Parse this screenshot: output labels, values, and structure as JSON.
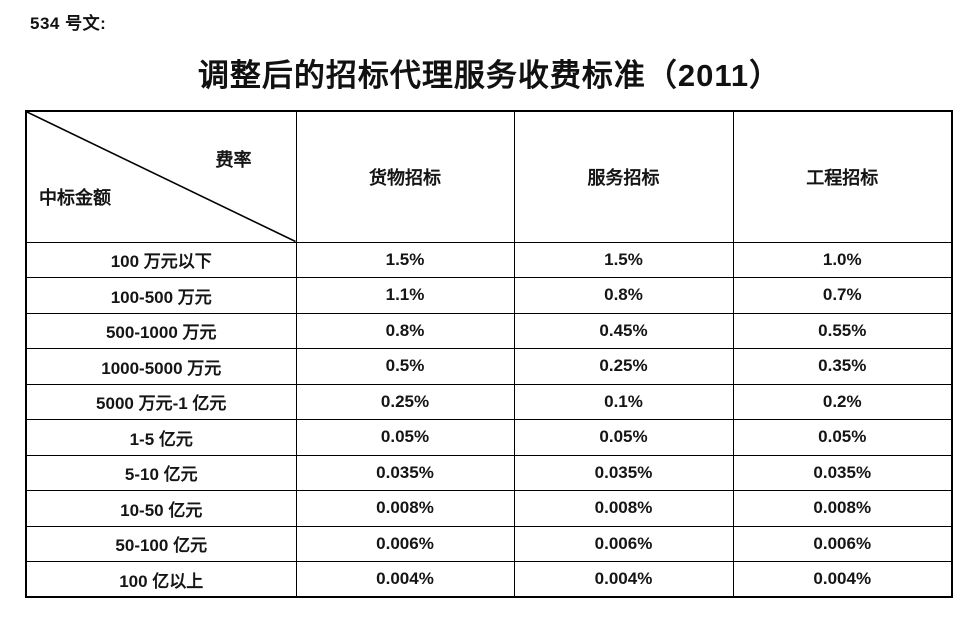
{
  "doc_label": "534 号文:",
  "title": "调整后的招标代理服务收费标准（2011）",
  "table": {
    "corner": {
      "top_right": "费率",
      "bottom_left": "中标金额"
    },
    "columns": [
      "货物招标",
      "服务招标",
      "工程招标"
    ],
    "rows": [
      {
        "label": "100 万元以下",
        "values": [
          "1.5%",
          "1.5%",
          "1.0%"
        ]
      },
      {
        "label": "100-500 万元",
        "values": [
          "1.1%",
          "0.8%",
          "0.7%"
        ]
      },
      {
        "label": "500-1000 万元",
        "values": [
          "0.8%",
          "0.45%",
          "0.55%"
        ]
      },
      {
        "label": "1000-5000 万元",
        "values": [
          "0.5%",
          "0.25%",
          "0.35%"
        ]
      },
      {
        "label": "5000 万元-1 亿元",
        "values": [
          "0.25%",
          "0.1%",
          "0.2%"
        ]
      },
      {
        "label": "1-5 亿元",
        "values": [
          "0.05%",
          "0.05%",
          "0.05%"
        ]
      },
      {
        "label": "5-10 亿元",
        "values": [
          "0.035%",
          "0.035%",
          "0.035%"
        ]
      },
      {
        "label": "10-50 亿元",
        "values": [
          "0.008%",
          "0.008%",
          "0.008%"
        ]
      },
      {
        "label": "50-100 亿元",
        "values": [
          "0.006%",
          "0.006%",
          "0.006%"
        ]
      },
      {
        "label": "100 亿以上",
        "values": [
          "0.004%",
          "0.004%",
          "0.004%"
        ]
      }
    ],
    "text_color": "#111111",
    "border_color": "#000000",
    "background_color": "#ffffff"
  }
}
